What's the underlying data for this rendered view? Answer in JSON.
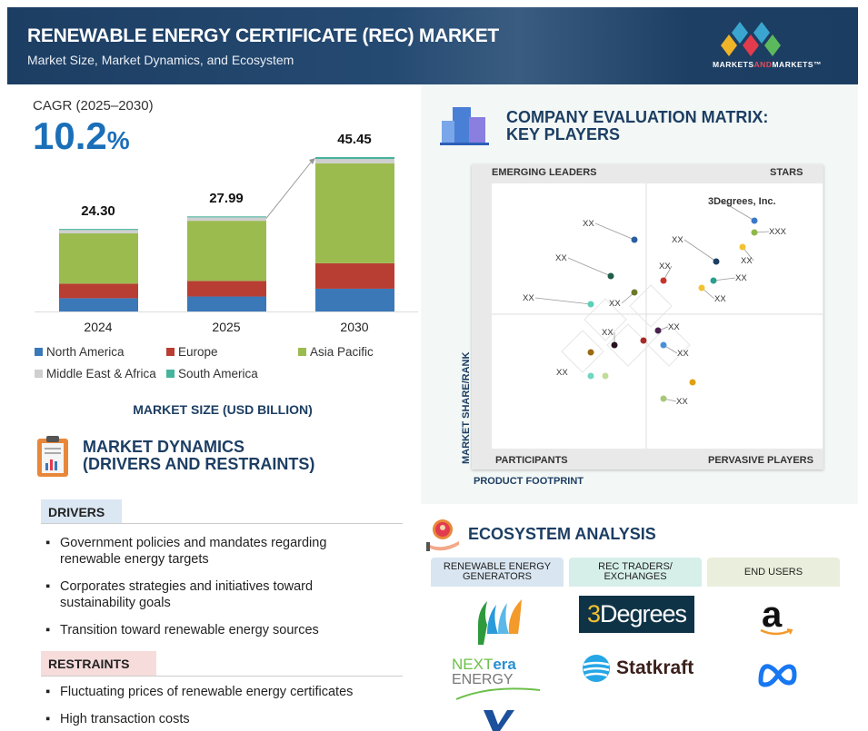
{
  "header": {
    "title": "RENEWABLE ENERGY CERTIFICATE (REC) MARKET",
    "subtitle": "Market Size, Market Dynamics, and Ecosystem",
    "logo_a": "MARKETS",
    "logo_b": "AND",
    "logo_c": "MARKETS™"
  },
  "cagr": {
    "label": "CAGR (2025–2030)",
    "value": "10.2",
    "unit": "%"
  },
  "chart_data": {
    "type": "bar",
    "stacked": true,
    "title": "MARKET SIZE (USD BILLION)",
    "categories": [
      "2024",
      "2025",
      "2030"
    ],
    "totals": [
      "24.30",
      "27.99",
      "45.45"
    ],
    "series": [
      {
        "name": "North America",
        "color": "#3a78b8",
        "values": [
          3.9,
          4.4,
          6.7
        ]
      },
      {
        "name": "Europe",
        "color": "#b83e33",
        "values": [
          4.3,
          4.6,
          7.5
        ]
      },
      {
        "name": "Asia Pacific",
        "color": "#9cbb4f",
        "values": [
          14.8,
          17.7,
          29.4
        ]
      },
      {
        "name": "Middle East & Africa",
        "color": "#cfcfcf",
        "values": [
          1.0,
          1.0,
          1.3
        ]
      },
      {
        "name": "South America",
        "color": "#46b39c",
        "values": [
          0.3,
          0.29,
          0.55
        ]
      }
    ],
    "ylim": [
      0,
      46
    ]
  },
  "dynamics": {
    "title1": "MARKET DYNAMICS",
    "title2": "(DRIVERS AND RESTRAINTS)",
    "drivers_label": "DRIVERS",
    "drivers": [
      "Government policies and mandates regarding renewable energy targets",
      "Corporates strategies and initiatives toward sustainability goals",
      "Transition toward renewable energy sources"
    ],
    "restraints_label": "RESTRAINTS",
    "restraints": [
      "Fluctuating prices of renewable energy certificates",
      "High transaction costs"
    ]
  },
  "matrix": {
    "title1": "COMPANY EVALUATION MATRIX:",
    "title2": "KEY PLAYERS",
    "q_tl": "EMERGING LEADERS",
    "q_tr": "STARS",
    "q_bl": "PARTICIPANTS",
    "q_br": "PERVASIVE PLAYERS",
    "y_axis": "MARKET SHARE/RANK",
    "x_axis": "PRODUCT FOOTPRINT",
    "labels": [
      "3Degrees, Inc.",
      "XXX",
      "XX"
    ]
  },
  "ecosystem": {
    "title": "ECOSYSTEM ANALYSIS",
    "columns": [
      {
        "label": "RENEWABLE ENERGY GENERATORS",
        "color": "#d9e6f2"
      },
      {
        "label": "REC TRADERS/ EXCHANGES",
        "color": "#d6efe9"
      },
      {
        "label": "END USERS",
        "color": "#e9efdc"
      }
    ],
    "logos": {
      "nextera_a": "NEXT",
      "nextera_b": "era",
      "nextera_c": "ENERGY",
      "threedeg_a": "3",
      "threedeg_b": "Degrees",
      "statkraft": "Statkraft",
      "amazon": "a"
    }
  }
}
